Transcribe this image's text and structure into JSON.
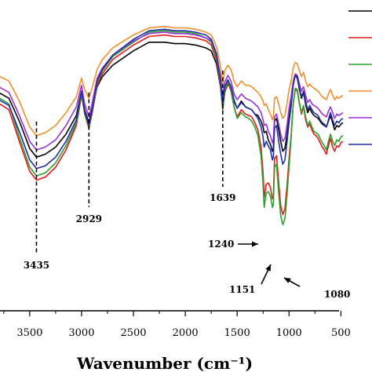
{
  "chart_data": {
    "type": "line",
    "xlabel": "Wavenumber (cm⁻¹)",
    "xlim": [
      3900,
      480
    ],
    "x_ticks": [
      "3500",
      "3000",
      "2500",
      "2000",
      "1500",
      "1000",
      "500"
    ],
    "legend_placement": "top-right",
    "grid": false,
    "series": [
      {
        "color": "#000000",
        "x": [
          3900,
          3700,
          3600,
          3500,
          3435,
          3350,
          3250,
          3150,
          3050,
          3000,
          2970,
          2929,
          2900,
          2850,
          2800,
          2700,
          2500,
          2350,
          2200,
          2100,
          2000,
          1900,
          1800,
          1750,
          1700,
          1660,
          1639,
          1620,
          1590,
          1560,
          1530,
          1500,
          1460,
          1420,
          1390,
          1360,
          1330,
          1300,
          1270,
          1250,
          1240,
          1220,
          1200,
          1180,
          1160,
          1151,
          1140,
          1120,
          1100,
          1080,
          1060,
          1040,
          1020,
          1000,
          980,
          960,
          940,
          920,
          900,
          880,
          860,
          840,
          820,
          800,
          780,
          760,
          740,
          720,
          700,
          680,
          660,
          640,
          620,
          600,
          580,
          560,
          540,
          520,
          500,
          480
        ],
        "y": [
          0.78,
          0.74,
          0.66,
          0.565,
          0.535,
          0.545,
          0.57,
          0.615,
          0.68,
          0.765,
          0.7,
          0.655,
          0.7,
          0.78,
          0.815,
          0.855,
          0.905,
          0.935,
          0.935,
          0.93,
          0.93,
          0.925,
          0.915,
          0.905,
          0.86,
          0.78,
          0.7,
          0.76,
          0.79,
          0.775,
          0.73,
          0.705,
          0.73,
          0.71,
          0.705,
          0.7,
          0.685,
          0.68,
          0.66,
          0.64,
          0.62,
          0.625,
          0.595,
          0.58,
          0.555,
          0.565,
          0.66,
          0.67,
          0.63,
          0.59,
          0.555,
          0.565,
          0.61,
          0.67,
          0.72,
          0.79,
          0.82,
          0.81,
          0.77,
          0.74,
          0.76,
          0.72,
          0.69,
          0.705,
          0.69,
          0.68,
          0.675,
          0.67,
          0.66,
          0.65,
          0.645,
          0.64,
          0.66,
          0.68,
          0.655,
          0.63,
          0.645,
          0.64,
          0.65,
          0.655
        ]
      },
      {
        "color": "#e41a1c",
        "x": [
          3900,
          3700,
          3600,
          3500,
          3435,
          3350,
          3250,
          3150,
          3050,
          3000,
          2970,
          2929,
          2900,
          2850,
          2800,
          2700,
          2500,
          2350,
          2200,
          2100,
          2000,
          1900,
          1800,
          1750,
          1700,
          1660,
          1639,
          1620,
          1590,
          1560,
          1530,
          1500,
          1460,
          1420,
          1390,
          1360,
          1330,
          1300,
          1270,
          1250,
          1240,
          1220,
          1200,
          1180,
          1160,
          1151,
          1140,
          1120,
          1100,
          1080,
          1060,
          1040,
          1020,
          1000,
          980,
          960,
          940,
          920,
          900,
          880,
          860,
          840,
          820,
          800,
          780,
          760,
          740,
          720,
          700,
          680,
          660,
          640,
          620,
          600,
          580,
          560,
          540,
          520,
          500,
          480
        ],
        "y": [
          0.745,
          0.7,
          0.59,
          0.485,
          0.455,
          0.465,
          0.5,
          0.56,
          0.645,
          0.75,
          0.685,
          0.635,
          0.685,
          0.785,
          0.825,
          0.875,
          0.925,
          0.955,
          0.96,
          0.955,
          0.955,
          0.95,
          0.94,
          0.925,
          0.875,
          0.785,
          0.7,
          0.76,
          0.795,
          0.765,
          0.71,
          0.675,
          0.7,
          0.685,
          0.68,
          0.675,
          0.655,
          0.63,
          0.57,
          0.48,
          0.395,
          0.44,
          0.445,
          0.43,
          0.39,
          0.4,
          0.53,
          0.54,
          0.445,
          0.365,
          0.335,
          0.355,
          0.43,
          0.53,
          0.61,
          0.72,
          0.77,
          0.765,
          0.72,
          0.685,
          0.71,
          0.665,
          0.64,
          0.65,
          0.63,
          0.615,
          0.61,
          0.6,
          0.585,
          0.57,
          0.56,
          0.545,
          0.575,
          0.6,
          0.57,
          0.555,
          0.575,
          0.57,
          0.585,
          0.59
        ]
      },
      {
        "color": "#2ca02c",
        "x": [
          3900,
          3700,
          3600,
          3500,
          3435,
          3350,
          3250,
          3150,
          3050,
          3000,
          2970,
          2929,
          2900,
          2850,
          2800,
          2700,
          2500,
          2350,
          2200,
          2100,
          2000,
          1900,
          1800,
          1750,
          1700,
          1660,
          1639,
          1620,
          1590,
          1560,
          1530,
          1500,
          1460,
          1420,
          1390,
          1360,
          1330,
          1300,
          1270,
          1250,
          1240,
          1220,
          1200,
          1180,
          1160,
          1151,
          1140,
          1120,
          1100,
          1080,
          1060,
          1040,
          1020,
          1000,
          980,
          960,
          940,
          920,
          900,
          880,
          860,
          840,
          820,
          800,
          780,
          760,
          740,
          720,
          700,
          680,
          660,
          640,
          620,
          600,
          580,
          560,
          540,
          520,
          500,
          480
        ],
        "y": [
          0.765,
          0.72,
          0.605,
          0.5,
          0.47,
          0.48,
          0.515,
          0.575,
          0.655,
          0.755,
          0.69,
          0.64,
          0.69,
          0.795,
          0.835,
          0.885,
          0.935,
          0.97,
          0.975,
          0.97,
          0.97,
          0.965,
          0.95,
          0.935,
          0.885,
          0.79,
          0.705,
          0.765,
          0.8,
          0.77,
          0.71,
          0.67,
          0.69,
          0.675,
          0.67,
          0.66,
          0.64,
          0.61,
          0.54,
          0.44,
          0.36,
          0.41,
          0.415,
          0.4,
          0.36,
          0.37,
          0.5,
          0.51,
          0.41,
          0.33,
          0.3,
          0.32,
          0.4,
          0.5,
          0.6,
          0.72,
          0.775,
          0.77,
          0.725,
          0.69,
          0.715,
          0.675,
          0.645,
          0.66,
          0.64,
          0.625,
          0.62,
          0.615,
          0.6,
          0.585,
          0.575,
          0.56,
          0.59,
          0.615,
          0.59,
          0.575,
          0.595,
          0.59,
          0.605,
          0.61
        ]
      },
      {
        "color": "#f28e2b",
        "x": [
          3900,
          3700,
          3600,
          3500,
          3435,
          3350,
          3250,
          3150,
          3050,
          3000,
          2970,
          2929,
          2900,
          2850,
          2800,
          2700,
          2500,
          2350,
          2200,
          2100,
          2000,
          1900,
          1800,
          1750,
          1700,
          1660,
          1639,
          1620,
          1590,
          1560,
          1530,
          1500,
          1460,
          1420,
          1390,
          1360,
          1330,
          1300,
          1270,
          1250,
          1240,
          1220,
          1200,
          1180,
          1160,
          1151,
          1140,
          1120,
          1100,
          1080,
          1060,
          1040,
          1020,
          1000,
          980,
          960,
          940,
          920,
          900,
          880,
          860,
          840,
          820,
          800,
          780,
          760,
          740,
          720,
          700,
          680,
          660,
          640,
          620,
          600,
          580,
          560,
          540,
          520,
          500,
          480
        ],
        "y": [
          0.835,
          0.8,
          0.73,
          0.64,
          0.61,
          0.62,
          0.645,
          0.69,
          0.745,
          0.81,
          0.77,
          0.74,
          0.775,
          0.84,
          0.875,
          0.915,
          0.96,
          0.985,
          0.99,
          0.985,
          0.985,
          0.98,
          0.97,
          0.96,
          0.92,
          0.85,
          0.79,
          0.835,
          0.855,
          0.84,
          0.8,
          0.78,
          0.8,
          0.785,
          0.785,
          0.78,
          0.77,
          0.76,
          0.745,
          0.73,
          0.715,
          0.72,
          0.7,
          0.685,
          0.665,
          0.675,
          0.74,
          0.745,
          0.72,
          0.69,
          0.67,
          0.68,
          0.72,
          0.77,
          0.8,
          0.845,
          0.865,
          0.86,
          0.835,
          0.815,
          0.83,
          0.8,
          0.78,
          0.79,
          0.78,
          0.775,
          0.77,
          0.765,
          0.755,
          0.745,
          0.74,
          0.735,
          0.755,
          0.77,
          0.75,
          0.735,
          0.745,
          0.74,
          0.745,
          0.75
        ]
      },
      {
        "color": "#9b30d9",
        "x": [
          3900,
          3700,
          3600,
          3500,
          3435,
          3350,
          3250,
          3150,
          3050,
          3000,
          2970,
          2929,
          2900,
          2850,
          2800,
          2700,
          2500,
          2350,
          2200,
          2100,
          2000,
          1900,
          1800,
          1750,
          1700,
          1660,
          1639,
          1620,
          1590,
          1560,
          1530,
          1500,
          1460,
          1420,
          1390,
          1360,
          1330,
          1300,
          1270,
          1250,
          1240,
          1220,
          1200,
          1180,
          1160,
          1151,
          1140,
          1120,
          1100,
          1080,
          1060,
          1040,
          1020,
          1000,
          980,
          960,
          940,
          920,
          900,
          880,
          860,
          840,
          820,
          800,
          780,
          760,
          740,
          720,
          700,
          680,
          660,
          640,
          620,
          600,
          580,
          560,
          540,
          520,
          500,
          480
        ],
        "y": [
          0.8,
          0.76,
          0.68,
          0.59,
          0.56,
          0.57,
          0.595,
          0.645,
          0.71,
          0.785,
          0.72,
          0.675,
          0.72,
          0.81,
          0.845,
          0.89,
          0.94,
          0.965,
          0.97,
          0.965,
          0.965,
          0.96,
          0.95,
          0.94,
          0.895,
          0.815,
          0.745,
          0.795,
          0.82,
          0.8,
          0.755,
          0.735,
          0.755,
          0.74,
          0.735,
          0.73,
          0.72,
          0.71,
          0.69,
          0.665,
          0.645,
          0.65,
          0.625,
          0.61,
          0.585,
          0.595,
          0.675,
          0.685,
          0.65,
          0.615,
          0.59,
          0.6,
          0.645,
          0.705,
          0.745,
          0.8,
          0.825,
          0.82,
          0.79,
          0.765,
          0.78,
          0.75,
          0.725,
          0.735,
          0.72,
          0.715,
          0.71,
          0.705,
          0.695,
          0.685,
          0.68,
          0.675,
          0.695,
          0.71,
          0.69,
          0.67,
          0.685,
          0.68,
          0.685,
          0.69
        ]
      },
      {
        "color": "#1f2fa6",
        "x": [
          3900,
          3700,
          3600,
          3500,
          3435,
          3350,
          3250,
          3150,
          3050,
          3000,
          2970,
          2929,
          2900,
          2850,
          2800,
          2700,
          2500,
          2350,
          2200,
          2100,
          2000,
          1900,
          1800,
          1750,
          1700,
          1660,
          1639,
          1620,
          1590,
          1560,
          1530,
          1500,
          1460,
          1420,
          1390,
          1360,
          1330,
          1300,
          1270,
          1250,
          1240,
          1220,
          1200,
          1180,
          1160,
          1151,
          1140,
          1120,
          1100,
          1080,
          1060,
          1040,
          1020,
          1000,
          980,
          960,
          940,
          920,
          900,
          880,
          860,
          840,
          820,
          800,
          780,
          760,
          740,
          720,
          700,
          680,
          660,
          640,
          620,
          600,
          580,
          560,
          540,
          520,
          500,
          480
        ],
        "y": [
          0.755,
          0.715,
          0.625,
          0.525,
          0.495,
          0.505,
          0.535,
          0.59,
          0.665,
          0.765,
          0.695,
          0.645,
          0.695,
          0.8,
          0.84,
          0.89,
          0.945,
          0.975,
          0.98,
          0.975,
          0.975,
          0.97,
          0.96,
          0.945,
          0.895,
          0.8,
          0.72,
          0.78,
          0.805,
          0.78,
          0.735,
          0.705,
          0.725,
          0.71,
          0.705,
          0.7,
          0.685,
          0.67,
          0.64,
          0.605,
          0.57,
          0.59,
          0.575,
          0.56,
          0.525,
          0.535,
          0.635,
          0.645,
          0.59,
          0.545,
          0.51,
          0.525,
          0.585,
          0.655,
          0.71,
          0.785,
          0.82,
          0.815,
          0.775,
          0.745,
          0.765,
          0.73,
          0.7,
          0.715,
          0.7,
          0.69,
          0.685,
          0.68,
          0.665,
          0.655,
          0.65,
          0.64,
          0.665,
          0.69,
          0.665,
          0.645,
          0.66,
          0.655,
          0.665,
          0.67
        ]
      }
    ],
    "annotations": [
      {
        "label": "3435",
        "x": 3435,
        "kind": "dashed-line"
      },
      {
        "label": "2929",
        "x": 2929,
        "kind": "dashed-line"
      },
      {
        "label": "1639",
        "x": 1639,
        "kind": "dashed-line"
      },
      {
        "label": "1240",
        "x": 1240,
        "kind": "arrow"
      },
      {
        "label": "1151",
        "x": 1151,
        "kind": "arrow"
      },
      {
        "label": "1080",
        "x": 1080,
        "kind": "arrow"
      }
    ]
  }
}
